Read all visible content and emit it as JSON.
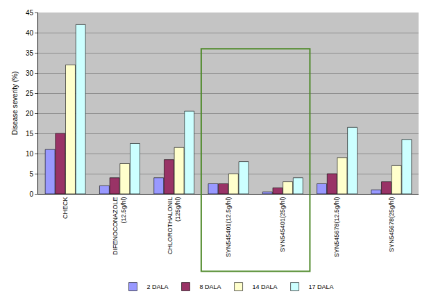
{
  "chart_data": {
    "type": "bar",
    "y_label": "Disease severity (%)",
    "categories": [
      "CHECK",
      "DIFENOCONAZOLE (12.5g/hl)",
      "CHLOROTHALONIL (125g/hl)",
      "SYN545401(12.5g/hl)",
      "SYN545401(25g/hl)",
      "SYN545678(12.5g/hl)",
      "SYN545678(25g/hl)"
    ],
    "series": [
      {
        "name": "2 DALA",
        "color": "#9999ff",
        "values": [
          11,
          2,
          4,
          2.5,
          0.5,
          2.5,
          1
        ]
      },
      {
        "name": "8 DALA",
        "color": "#993366",
        "values": [
          15,
          4,
          8.5,
          2.5,
          1.5,
          5,
          3
        ]
      },
      {
        "name": "14 DALA",
        "color": "#ffffcc",
        "values": [
          32,
          7.5,
          11.5,
          5,
          3,
          9,
          7
        ]
      },
      {
        "name": "17 DALA",
        "color": "#ccffff",
        "values": [
          42,
          12.5,
          20.5,
          8,
          4,
          16.5,
          13.5
        ]
      }
    ],
    "ylim": [
      0,
      45
    ],
    "yticks": [
      0,
      5,
      10,
      15,
      20,
      25,
      30,
      35,
      40,
      45
    ],
    "grid": true,
    "legend": "bottom"
  }
}
